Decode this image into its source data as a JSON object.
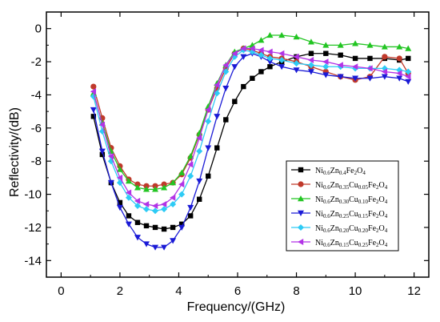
{
  "chart_data": {
    "type": "line",
    "title": "",
    "xlabel": "Frequency/(GHz)",
    "ylabel": "Reflectivity/(dB)",
    "xlim": [
      -0.5,
      12.5
    ],
    "ylim": [
      -15,
      1
    ],
    "xticks": [
      0,
      2,
      4,
      6,
      8,
      10,
      12
    ],
    "yticks": [
      0,
      -2,
      -4,
      -6,
      -8,
      -10,
      -12,
      -14
    ],
    "legend_position": "center-right",
    "series": [
      {
        "name": "Ni0.6Zn0.4Fe2O4",
        "legend": [
          [
            "Ni",
            ""
          ],
          [
            "0.6",
            "sub"
          ],
          [
            "Zn",
            ""
          ],
          [
            "0.4",
            "sub"
          ],
          [
            "Fe",
            ""
          ],
          [
            "2",
            "sub"
          ],
          [
            "O",
            ""
          ],
          [
            "4",
            "sub"
          ]
        ],
        "color": "#000000",
        "marker": "square",
        "x": [
          1.1,
          1.4,
          1.7,
          2.0,
          2.3,
          2.6,
          2.9,
          3.2,
          3.5,
          3.8,
          4.1,
          4.4,
          4.7,
          5.0,
          5.3,
          5.6,
          5.9,
          6.2,
          6.5,
          6.8,
          7.1,
          7.5,
          8.0,
          8.5,
          9.0,
          9.5,
          10.0,
          10.5,
          11.0,
          11.5,
          11.8
        ],
        "y": [
          -5.3,
          -7.6,
          -9.3,
          -10.5,
          -11.3,
          -11.7,
          -11.9,
          -12.0,
          -12.1,
          -12.0,
          -11.8,
          -11.3,
          -10.3,
          -8.9,
          -7.2,
          -5.5,
          -4.4,
          -3.5,
          -3.0,
          -2.6,
          -2.3,
          -2.0,
          -1.7,
          -1.5,
          -1.5,
          -1.6,
          -1.8,
          -1.8,
          -1.8,
          -1.9,
          -1.8
        ]
      },
      {
        "name": "Ni0.6Zn0.35Cu0.05Fe2O4",
        "legend": [
          [
            "Ni",
            ""
          ],
          [
            "0.6",
            "sub"
          ],
          [
            "Zn",
            ""
          ],
          [
            "0.35",
            "sub"
          ],
          [
            "Cu",
            ""
          ],
          [
            "0.05",
            "sub"
          ],
          [
            "Fe",
            ""
          ],
          [
            "2",
            "sub"
          ],
          [
            "O",
            ""
          ],
          [
            "4",
            "sub"
          ]
        ],
        "color": "#c0392b",
        "marker": "circle",
        "x": [
          1.1,
          1.4,
          1.7,
          2.0,
          2.3,
          2.6,
          2.9,
          3.2,
          3.5,
          3.8,
          4.1,
          4.4,
          4.7,
          5.0,
          5.3,
          5.6,
          5.9,
          6.2,
          6.5,
          6.8,
          7.1,
          7.5,
          8.0,
          8.5,
          9.0,
          9.5,
          10.0,
          10.5,
          11.0,
          11.5,
          11.8
        ],
        "y": [
          -3.5,
          -5.4,
          -7.2,
          -8.3,
          -9.1,
          -9.4,
          -9.5,
          -9.5,
          -9.4,
          -9.3,
          -8.8,
          -7.8,
          -6.4,
          -4.9,
          -3.6,
          -2.4,
          -1.5,
          -1.2,
          -1.3,
          -1.5,
          -1.7,
          -1.8,
          -2.0,
          -2.3,
          -2.6,
          -2.9,
          -3.1,
          -2.9,
          -1.7,
          -1.8,
          -2.7
        ]
      },
      {
        "name": "Ni0.6Zn0.30Cu0.10Fe2O4",
        "legend": [
          [
            "Ni",
            ""
          ],
          [
            "0.6",
            "sub"
          ],
          [
            "Zn",
            ""
          ],
          [
            "0.30",
            "sub"
          ],
          [
            "Cu",
            ""
          ],
          [
            "0.10",
            "sub"
          ],
          [
            "Fe",
            ""
          ],
          [
            "2",
            "sub"
          ],
          [
            "O",
            ""
          ],
          [
            "4",
            "sub"
          ]
        ],
        "color": "#22c522",
        "marker": "triangle-up",
        "x": [
          1.1,
          1.4,
          1.7,
          2.0,
          2.3,
          2.6,
          2.9,
          3.2,
          3.5,
          3.8,
          4.1,
          4.4,
          4.7,
          5.0,
          5.3,
          5.6,
          5.9,
          6.2,
          6.5,
          6.8,
          7.1,
          7.5,
          8.0,
          8.5,
          9.0,
          9.5,
          10.0,
          10.5,
          11.0,
          11.5,
          11.8
        ],
        "y": [
          -3.9,
          -5.7,
          -7.4,
          -8.5,
          -9.2,
          -9.6,
          -9.7,
          -9.7,
          -9.6,
          -9.3,
          -8.7,
          -7.7,
          -6.3,
          -4.7,
          -3.3,
          -2.2,
          -1.4,
          -1.2,
          -1.0,
          -0.7,
          -0.4,
          -0.4,
          -0.5,
          -0.8,
          -1.0,
          -1.0,
          -0.9,
          -1.0,
          -1.1,
          -1.1,
          -1.2
        ]
      },
      {
        "name": "Ni0.6Zn0.25Cu0.15Fe2O4",
        "legend": [
          [
            "Ni",
            ""
          ],
          [
            "0.6",
            "sub"
          ],
          [
            "Zn",
            ""
          ],
          [
            "0.25",
            "sub"
          ],
          [
            "Cu",
            ""
          ],
          [
            "0.15",
            "sub"
          ],
          [
            "Fe",
            ""
          ],
          [
            "2",
            "sub"
          ],
          [
            "O",
            ""
          ],
          [
            "4",
            "sub"
          ]
        ],
        "color": "#1a1ad6",
        "marker": "triangle-down",
        "x": [
          1.1,
          1.4,
          1.7,
          2.0,
          2.3,
          2.6,
          2.9,
          3.2,
          3.5,
          3.8,
          4.1,
          4.4,
          4.7,
          5.0,
          5.3,
          5.6,
          5.9,
          6.2,
          6.5,
          6.8,
          7.1,
          7.5,
          8.0,
          8.5,
          9.0,
          9.5,
          10.0,
          10.5,
          11.0,
          11.5,
          11.8
        ],
        "y": [
          -4.9,
          -7.4,
          -9.3,
          -10.8,
          -11.8,
          -12.6,
          -13.0,
          -13.2,
          -13.2,
          -12.8,
          -12.0,
          -10.8,
          -9.2,
          -7.2,
          -5.3,
          -3.6,
          -2.3,
          -1.7,
          -1.5,
          -1.7,
          -2.0,
          -2.3,
          -2.5,
          -2.6,
          -2.8,
          -2.9,
          -3.0,
          -3.0,
          -2.9,
          -3.0,
          -3.2
        ]
      },
      {
        "name": "Ni0.6Zn0.20Cu0.20Fe2O4",
        "legend": [
          [
            "Ni",
            ""
          ],
          [
            "0.6",
            "sub"
          ],
          [
            "Zn",
            ""
          ],
          [
            "0.20",
            "sub"
          ],
          [
            "Cu",
            ""
          ],
          [
            "0.20",
            "sub"
          ],
          [
            "Fe",
            ""
          ],
          [
            "2",
            "sub"
          ],
          [
            "O",
            ""
          ],
          [
            "4",
            "sub"
          ]
        ],
        "color": "#2ecbf5",
        "marker": "diamond",
        "x": [
          1.1,
          1.4,
          1.7,
          2.0,
          2.3,
          2.6,
          2.9,
          3.2,
          3.5,
          3.8,
          4.1,
          4.4,
          4.7,
          5.0,
          5.3,
          5.6,
          5.9,
          6.2,
          6.5,
          6.8,
          7.1,
          7.5,
          8.0,
          8.5,
          9.0,
          9.5,
          10.0,
          10.5,
          11.0,
          11.5,
          11.8
        ],
        "y": [
          -4.1,
          -6.2,
          -8.0,
          -9.3,
          -10.2,
          -10.7,
          -10.9,
          -11.0,
          -10.9,
          -10.6,
          -10.0,
          -8.9,
          -7.4,
          -5.6,
          -3.9,
          -2.6,
          -1.7,
          -1.3,
          -1.4,
          -1.6,
          -1.8,
          -1.9,
          -2.1,
          -2.2,
          -2.3,
          -2.3,
          -2.4,
          -2.4,
          -2.4,
          -2.5,
          -2.6
        ]
      },
      {
        "name": "Ni0.6Zn0.15Cu0.25Fe2O4",
        "legend": [
          [
            "Ni",
            ""
          ],
          [
            "0.6",
            "sub"
          ],
          [
            "Zn",
            ""
          ],
          [
            "0.15",
            "sub"
          ],
          [
            "Cu",
            ""
          ],
          [
            "0.25",
            "sub"
          ],
          [
            "Fe",
            ""
          ],
          [
            "2",
            "sub"
          ],
          [
            "O",
            ""
          ],
          [
            "4",
            "sub"
          ]
        ],
        "color": "#b233e6",
        "marker": "triangle-left",
        "x": [
          1.1,
          1.4,
          1.7,
          2.0,
          2.3,
          2.6,
          2.9,
          3.2,
          3.5,
          3.8,
          4.1,
          4.4,
          4.7,
          5.0,
          5.3,
          5.6,
          5.9,
          6.2,
          6.5,
          6.8,
          7.1,
          7.5,
          8.0,
          8.5,
          9.0,
          9.5,
          10.0,
          10.5,
          11.0,
          11.5,
          11.8
        ],
        "y": [
          -3.8,
          -5.8,
          -7.7,
          -9.0,
          -9.9,
          -10.4,
          -10.6,
          -10.7,
          -10.6,
          -10.2,
          -9.4,
          -8.2,
          -6.6,
          -4.9,
          -3.4,
          -2.2,
          -1.5,
          -1.2,
          -1.2,
          -1.3,
          -1.4,
          -1.5,
          -1.7,
          -1.9,
          -2.0,
          -2.2,
          -2.3,
          -2.4,
          -2.6,
          -2.7,
          -2.9
        ]
      }
    ]
  }
}
